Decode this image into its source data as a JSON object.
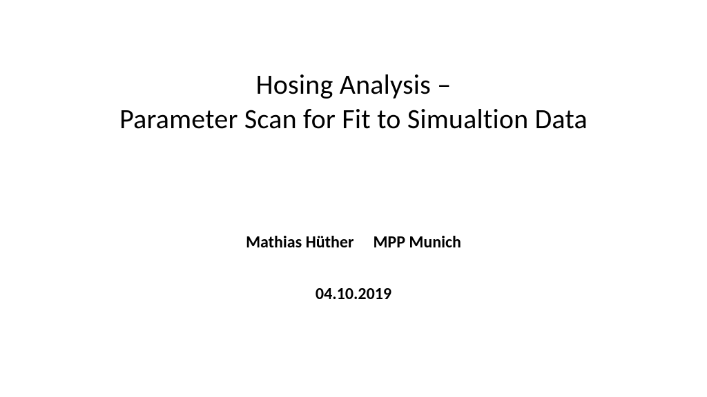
{
  "slide": {
    "title_line1": "Hosing Analysis –",
    "title_line2": "Parameter Scan for Fit to Simualtion Data",
    "author_name": "Mathias Hüther",
    "affiliation": "MPP Munich",
    "date": "04.10.2019",
    "style": {
      "background_color": "#ffffff",
      "title_color": "#000000",
      "title_fontsize_pt": 30,
      "title_fontweight": 400,
      "subtitle_color": "#000000",
      "subtitle_fontsize_pt": 18,
      "subtitle_fontweight": 600,
      "font_family": "Calibri"
    }
  }
}
